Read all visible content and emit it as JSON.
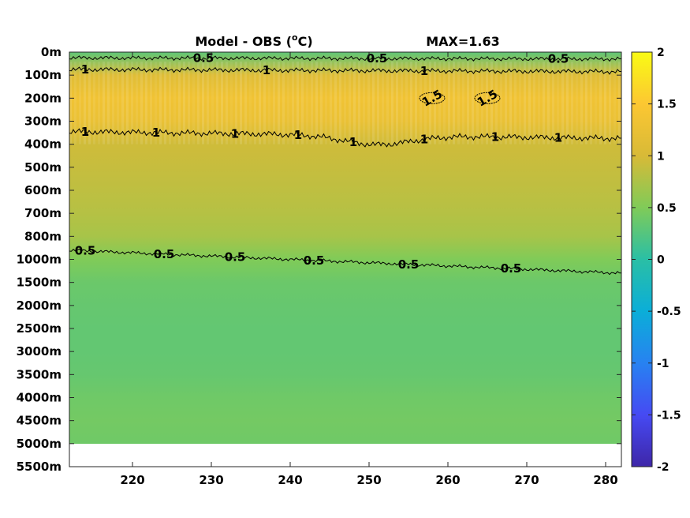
{
  "chart_data": {
    "type": "heatmap",
    "title": "Model - OBS (°C)",
    "title_main": "Model - OBS (",
    "title_degree": "o",
    "title_unit": "C)",
    "max_label": "MAX=1.63",
    "max_value": 1.63,
    "xlim": [
      212,
      282
    ],
    "x_ticks": [
      220,
      230,
      240,
      250,
      260,
      270,
      280
    ],
    "y_ticks": [
      "0m",
      "100m",
      "200m",
      "300m",
      "400m",
      "500m",
      "600m",
      "700m",
      "800m",
      "1000m",
      "1500m",
      "2000m",
      "2500m",
      "3000m",
      "3500m",
      "4000m",
      "4500m",
      "5000m",
      "5500m"
    ],
    "data_bottom_depth": "5000m",
    "colorbar": {
      "colormap": "parula",
      "range": [
        -2,
        2
      ],
      "ticks": [
        "2",
        "1.5",
        "1",
        "0.5",
        "0",
        "-0.5",
        "-1",
        "-1.5",
        "-2"
      ]
    },
    "depth_profile": [
      {
        "depth": "0m",
        "value": 0.3
      },
      {
        "depth": "100m",
        "value": 1.1
      },
      {
        "depth": "200m",
        "value": 1.35
      },
      {
        "depth": "300m",
        "value": 1.25
      },
      {
        "depth": "400m",
        "value": 0.95
      },
      {
        "depth": "500m",
        "value": 0.9
      },
      {
        "depth": "600m",
        "value": 0.85
      },
      {
        "depth": "700m",
        "value": 0.8
      },
      {
        "depth": "800m",
        "value": 0.72
      },
      {
        "depth": "1000m",
        "value": 0.5
      },
      {
        "depth": "1500m",
        "value": 0.38
      },
      {
        "depth": "2000m",
        "value": 0.35
      },
      {
        "depth": "2500m",
        "value": 0.33
      },
      {
        "depth": "3000m",
        "value": 0.33
      },
      {
        "depth": "3500m",
        "value": 0.35
      },
      {
        "depth": "4000m",
        "value": 0.4
      },
      {
        "depth": "4500m",
        "value": 0.43
      },
      {
        "depth": "5000m",
        "value": 0.4
      }
    ],
    "contours": [
      {
        "level": 0.5,
        "label": "0.5",
        "label_x": [
          229,
          251,
          274
        ]
      },
      {
        "level": 1,
        "label": "1",
        "label_x": [
          214,
          237,
          257
        ]
      },
      {
        "level": 1.5,
        "label": "1.5",
        "label_x": [
          258,
          265
        ]
      },
      {
        "level": 1,
        "label": "1",
        "label_x": [
          214,
          223,
          233,
          241,
          248,
          257,
          266,
          274
        ]
      },
      {
        "level": 0.5,
        "label": "0.5",
        "label_x": [
          214,
          224,
          233,
          243,
          255,
          268
        ]
      }
    ]
  }
}
